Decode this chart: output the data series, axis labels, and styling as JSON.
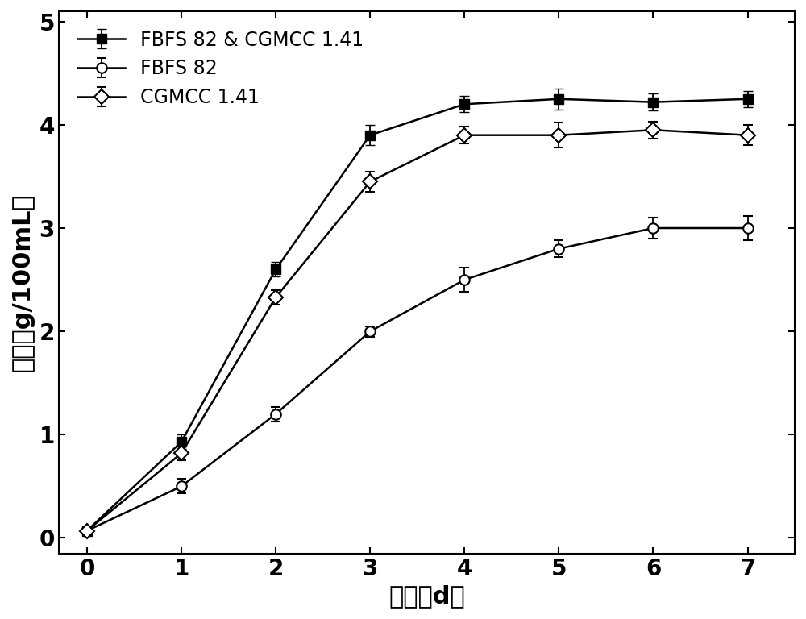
{
  "x": [
    0,
    1,
    2,
    3,
    4,
    5,
    6,
    7
  ],
  "series1_y": [
    0.07,
    0.93,
    2.6,
    3.9,
    4.2,
    4.25,
    4.22,
    4.25
  ],
  "series1_err": [
    0.02,
    0.07,
    0.07,
    0.1,
    0.08,
    0.1,
    0.08,
    0.08
  ],
  "series2_y": [
    0.07,
    0.5,
    1.2,
    2.0,
    2.5,
    2.8,
    3.0,
    3.0
  ],
  "series2_err": [
    0.02,
    0.07,
    0.07,
    0.05,
    0.12,
    0.08,
    0.1,
    0.12
  ],
  "series3_y": [
    0.07,
    0.82,
    2.33,
    3.45,
    3.9,
    3.9,
    3.95,
    3.9
  ],
  "series3_err": [
    0.02,
    0.07,
    0.07,
    0.1,
    0.08,
    0.12,
    0.08,
    0.1
  ],
  "series1_label": "FBFS 82 & CGMCC 1.41",
  "series2_label": "FBFS 82",
  "series3_label": "CGMCC 1.41",
  "xlabel": "时间（d）",
  "ylabel": "总酸（g/100mL）",
  "xlim": [
    -0.3,
    7.5
  ],
  "ylim": [
    -0.15,
    5.1
  ],
  "yticks": [
    0,
    1,
    2,
    3,
    4,
    5
  ],
  "xticks": [
    0,
    1,
    2,
    3,
    4,
    5,
    6,
    7
  ],
  "color": "#000000",
  "background_color": "#ffffff",
  "linewidth": 1.8,
  "markersize": 9,
  "capsize": 4,
  "xlabel_fontsize": 22,
  "ylabel_fontsize": 22,
  "tick_fontsize": 20,
  "legend_fontsize": 17
}
